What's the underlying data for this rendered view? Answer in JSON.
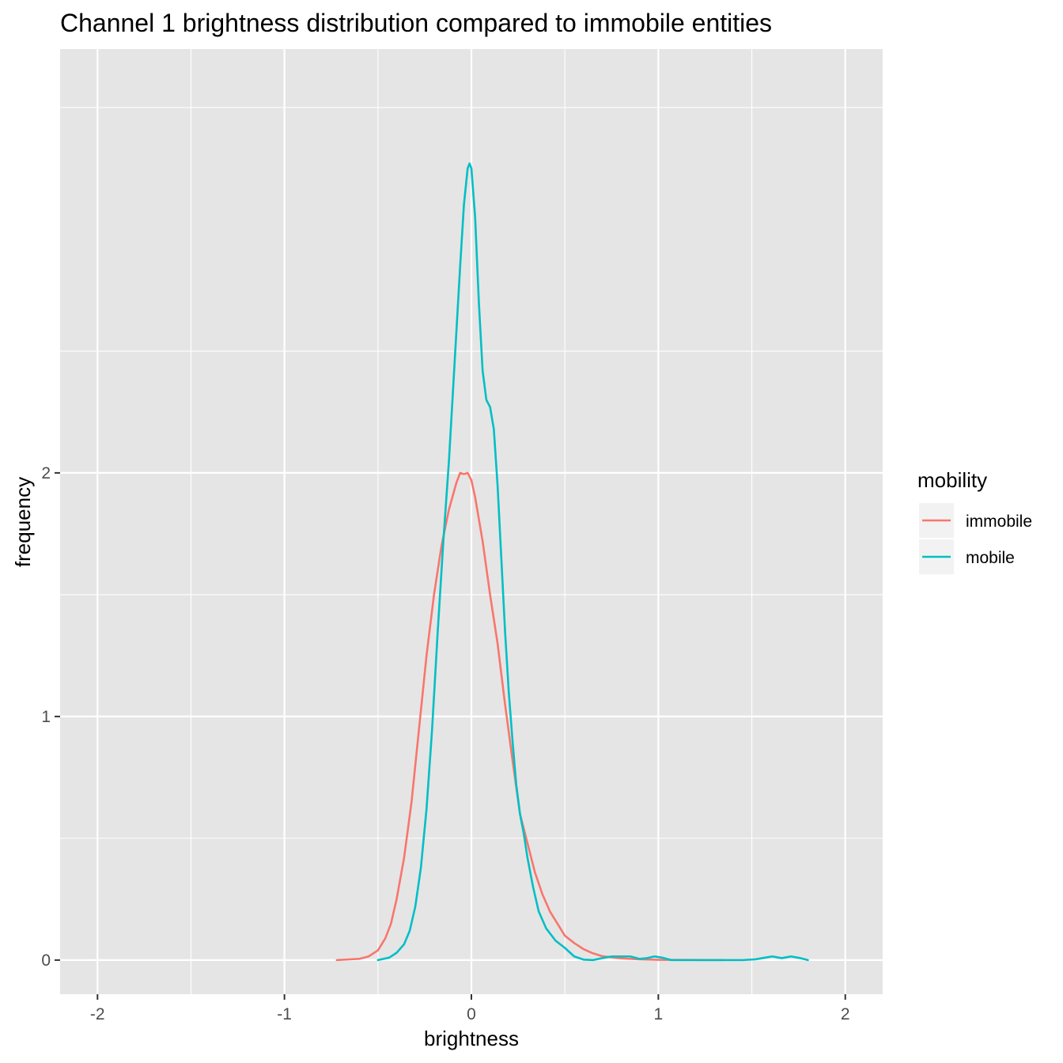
{
  "chart_data": {
    "type": "line",
    "title": "Channel 1 brightness distribution compared to immobile entities",
    "xlabel": "brightness",
    "ylabel": "frequency",
    "xlim": [
      -2.2,
      2.2
    ],
    "ylim": [
      -0.14,
      3.74
    ],
    "x_ticks": [
      -2,
      -1,
      0,
      1,
      2
    ],
    "x_tick_labels": [
      "-2",
      "-1",
      "0",
      "1",
      "2"
    ],
    "y_ticks": [
      0,
      1,
      2
    ],
    "y_tick_labels": [
      "0",
      "1",
      "2"
    ],
    "grid": true,
    "legend": {
      "title": "mobility",
      "position": "right"
    },
    "series": [
      {
        "name": "immobile",
        "color": "#F8766D",
        "points": [
          [
            -0.72,
            0.0
          ],
          [
            -0.6,
            0.005
          ],
          [
            -0.55,
            0.015
          ],
          [
            -0.5,
            0.04
          ],
          [
            -0.46,
            0.09
          ],
          [
            -0.43,
            0.15
          ],
          [
            -0.4,
            0.25
          ],
          [
            -0.36,
            0.42
          ],
          [
            -0.32,
            0.65
          ],
          [
            -0.28,
            0.95
          ],
          [
            -0.24,
            1.25
          ],
          [
            -0.2,
            1.5
          ],
          [
            -0.16,
            1.7
          ],
          [
            -0.12,
            1.85
          ],
          [
            -0.08,
            1.96
          ],
          [
            -0.06,
            2.0
          ],
          [
            -0.04,
            1.995
          ],
          [
            -0.02,
            2.0
          ],
          [
            0.0,
            1.97
          ],
          [
            0.02,
            1.9
          ],
          [
            0.06,
            1.72
          ],
          [
            0.1,
            1.5
          ],
          [
            0.14,
            1.3
          ],
          [
            0.18,
            1.05
          ],
          [
            0.22,
            0.82
          ],
          [
            0.26,
            0.6
          ],
          [
            0.3,
            0.48
          ],
          [
            0.34,
            0.36
          ],
          [
            0.38,
            0.27
          ],
          [
            0.42,
            0.2
          ],
          [
            0.46,
            0.15
          ],
          [
            0.5,
            0.1
          ],
          [
            0.55,
            0.07
          ],
          [
            0.6,
            0.045
          ],
          [
            0.65,
            0.028
          ],
          [
            0.7,
            0.016
          ],
          [
            0.8,
            0.007
          ],
          [
            0.9,
            0.003
          ],
          [
            1.0,
            0.001
          ],
          [
            1.35,
            0.0
          ]
        ]
      },
      {
        "name": "mobile",
        "color": "#00BFC4",
        "points": [
          [
            -0.5,
            0.0
          ],
          [
            -0.44,
            0.01
          ],
          [
            -0.4,
            0.03
          ],
          [
            -0.36,
            0.065
          ],
          [
            -0.33,
            0.12
          ],
          [
            -0.3,
            0.22
          ],
          [
            -0.27,
            0.38
          ],
          [
            -0.24,
            0.62
          ],
          [
            -0.21,
            0.95
          ],
          [
            -0.18,
            1.35
          ],
          [
            -0.15,
            1.72
          ],
          [
            -0.12,
            2.05
          ],
          [
            -0.09,
            2.45
          ],
          [
            -0.06,
            2.85
          ],
          [
            -0.04,
            3.1
          ],
          [
            -0.02,
            3.25
          ],
          [
            -0.01,
            3.27
          ],
          [
            0.0,
            3.25
          ],
          [
            0.02,
            3.05
          ],
          [
            0.04,
            2.7
          ],
          [
            0.06,
            2.42
          ],
          [
            0.08,
            2.3
          ],
          [
            0.1,
            2.27
          ],
          [
            0.12,
            2.18
          ],
          [
            0.14,
            1.95
          ],
          [
            0.16,
            1.65
          ],
          [
            0.18,
            1.35
          ],
          [
            0.2,
            1.1
          ],
          [
            0.22,
            0.9
          ],
          [
            0.24,
            0.72
          ],
          [
            0.26,
            0.6
          ],
          [
            0.28,
            0.52
          ],
          [
            0.3,
            0.42
          ],
          [
            0.33,
            0.3
          ],
          [
            0.36,
            0.2
          ],
          [
            0.4,
            0.13
          ],
          [
            0.45,
            0.08
          ],
          [
            0.5,
            0.05
          ],
          [
            0.55,
            0.015
          ],
          [
            0.6,
            0.002
          ],
          [
            0.65,
            0.0
          ],
          [
            0.7,
            0.008
          ],
          [
            0.75,
            0.015
          ],
          [
            0.8,
            0.015
          ],
          [
            0.85,
            0.015
          ],
          [
            0.9,
            0.005
          ],
          [
            0.94,
            0.008
          ],
          [
            0.98,
            0.015
          ],
          [
            1.02,
            0.01
          ],
          [
            1.07,
            0.0
          ],
          [
            1.45,
            0.0
          ],
          [
            1.52,
            0.003
          ],
          [
            1.57,
            0.01
          ],
          [
            1.61,
            0.015
          ],
          [
            1.66,
            0.008
          ],
          [
            1.71,
            0.015
          ],
          [
            1.76,
            0.008
          ],
          [
            1.8,
            0.0
          ]
        ]
      }
    ]
  },
  "colors": {
    "panel_background": "#E5E5E5",
    "grid_line": "#FFFFFF",
    "legend_key_background": "#F2F2F2"
  }
}
